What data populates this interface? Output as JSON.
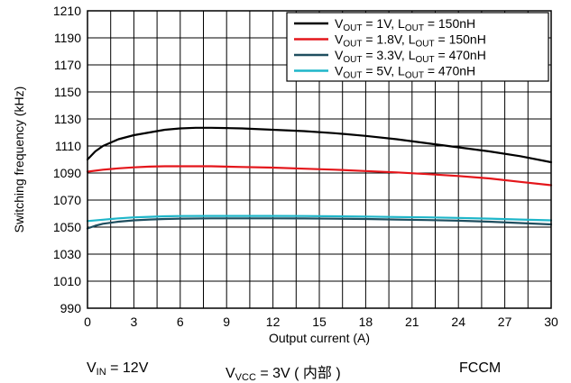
{
  "chart_data": {
    "type": "line",
    "xlabel": "Output current (A)",
    "ylabel": "Switching frequency (kHz)",
    "xlim": [
      0,
      30
    ],
    "ylim": [
      990,
      1210
    ],
    "xticks": [
      0,
      3,
      6,
      9,
      12,
      15,
      18,
      21,
      24,
      27,
      30
    ],
    "yticks": [
      990,
      1010,
      1030,
      1050,
      1070,
      1090,
      1110,
      1130,
      1150,
      1170,
      1190,
      1210
    ],
    "grid": true,
    "legend_position": "top-right",
    "series": [
      {
        "name": "VOUT = 1V, LOUT = 150nH",
        "v_sym": "V",
        "v_sub": "OUT",
        "v_val": " = 1V, ",
        "l_sym": "L",
        "l_sub": "OUT",
        "l_val": " = 150nH",
        "color": "#000000",
        "x": [
          0,
          0.5,
          1,
          2,
          3,
          4,
          5,
          6,
          7,
          8,
          9,
          10,
          12,
          14,
          16,
          18,
          20,
          22,
          24,
          26,
          28,
          30
        ],
        "y": [
          1100,
          1106,
          1110,
          1115,
          1118,
          1120,
          1122,
          1123,
          1123.5,
          1123.5,
          1123.3,
          1123,
          1122,
          1121,
          1119.5,
          1117.5,
          1115,
          1112,
          1109,
          1106,
          1102.5,
          1098
        ]
      },
      {
        "name": "VOUT = 1.8V, LOUT = 150nH",
        "v_sym": "V",
        "v_sub": "OUT",
        "v_val": " = 1.8V, ",
        "l_sym": "L",
        "l_sub": "OUT",
        "l_val": " = 150nH",
        "color": "#e4161b",
        "x": [
          0,
          1,
          2,
          3,
          4,
          5,
          6,
          8,
          10,
          12,
          14,
          16,
          18,
          20,
          22,
          24,
          26,
          28,
          30
        ],
        "y": [
          1091,
          1092.5,
          1093.5,
          1094.2,
          1094.7,
          1095,
          1095,
          1095,
          1094.5,
          1094,
          1093.2,
          1092.5,
          1091.5,
          1090.5,
          1089.2,
          1087.8,
          1086,
          1083.5,
          1081
        ]
      },
      {
        "name": "VOUT = 3.3V, LOUT = 470nH",
        "v_sym": "V",
        "v_sub": "OUT",
        "v_val": " = 3.3V, ",
        "l_sym": "L",
        "l_sub": "OUT",
        "l_val": " = 470nH",
        "color": "#1f4e5f",
        "x": [
          0,
          0.5,
          1,
          2,
          3,
          4,
          5,
          6,
          8,
          10,
          12,
          14,
          16,
          18,
          20,
          22,
          24,
          26,
          28,
          30
        ],
        "y": [
          1049,
          1051,
          1052.5,
          1054,
          1055,
          1055.6,
          1056,
          1056.3,
          1056.5,
          1056.5,
          1056.5,
          1056.4,
          1056.2,
          1056,
          1055.6,
          1055.2,
          1054.7,
          1054,
          1053,
          1052
        ]
      },
      {
        "name": "VOUT = 5V, LOUT = 470nH",
        "v_sym": "V",
        "v_sub": "OUT",
        "v_val": " = 5V, ",
        "l_sym": "L",
        "l_sub": "OUT",
        "l_val": " = 470nH",
        "color": "#1fb6c9",
        "x": [
          0,
          1,
          2,
          3,
          4,
          5,
          6,
          8,
          10,
          12,
          14,
          16,
          18,
          20,
          22,
          24,
          26,
          28,
          30
        ],
        "y": [
          1054.5,
          1055.5,
          1056.5,
          1057.2,
          1057.6,
          1058,
          1058.2,
          1058.3,
          1058.3,
          1058.3,
          1058.2,
          1058,
          1057.8,
          1057.5,
          1057.2,
          1056.8,
          1056.3,
          1055.6,
          1055
        ]
      }
    ]
  },
  "conditions": {
    "vin": {
      "sym": "V",
      "sub": "IN",
      "val": " = 12V"
    },
    "vvcc": {
      "sym": "V",
      "sub": "VCC",
      "val": " = 3V ( 内部 )"
    },
    "mode": "FCCM"
  }
}
